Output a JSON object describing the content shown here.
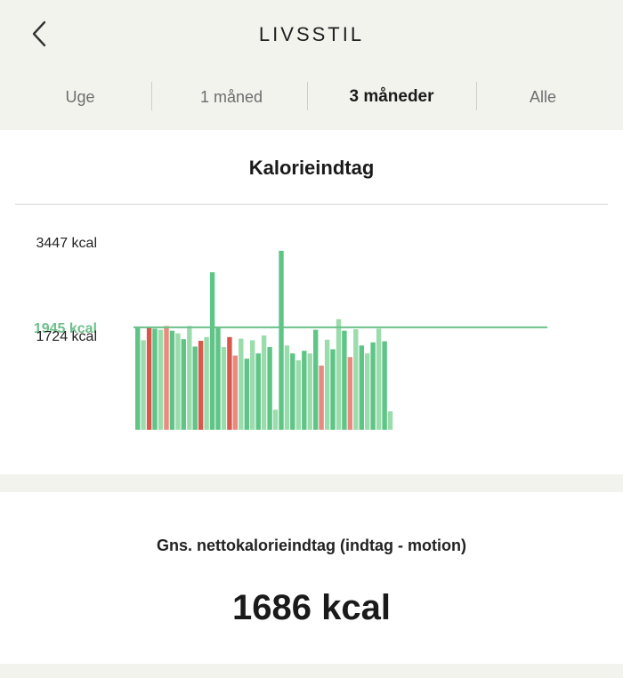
{
  "header": {
    "title": "LIVSSTIL",
    "back_icon": "chevron-left-icon"
  },
  "tabs": [
    {
      "label": "Uge",
      "active": false
    },
    {
      "label": "1 måned",
      "active": false
    },
    {
      "label": "3 måneder",
      "active": true
    },
    {
      "label": "Alle",
      "active": false
    }
  ],
  "chart": {
    "title": "Kalorieindtag"
  },
  "chart_data": {
    "type": "bar",
    "unit": "kcal",
    "y_labels": [
      "3447 kcal",
      "1945 kcal",
      "1724 kcal"
    ],
    "max_value": 3447,
    "goal_value": 1945,
    "average_value": 1724,
    "ylim": [
      0,
      3447
    ],
    "colors": {
      "goal_line": "#6cc08a",
      "under_goal_dark": "#5fc587",
      "under_goal_light": "#9bdcad",
      "over_goal_dark": "#d9584d",
      "over_goal_light": "#e88a7f"
    },
    "values": [
      1960,
      1700,
      1960,
      1920,
      1900,
      1970,
      1880,
      1830,
      1720,
      1970,
      1580,
      1690,
      1760,
      2990,
      1940,
      1570,
      1760,
      1410,
      1730,
      1350,
      1700,
      1450,
      1790,
      1570,
      380,
      3400,
      1600,
      1450,
      1320,
      1500,
      1450,
      1900,
      1220,
      1710,
      1530,
      2100,
      1880,
      1380,
      1910,
      1600,
      1450,
      1660,
      1920,
      1680,
      350
    ],
    "tones": [
      "d",
      "l",
      "r",
      "d",
      "l",
      "p",
      "d",
      "l",
      "d",
      "l",
      "d",
      "r",
      "l",
      "d",
      "d",
      "l",
      "r",
      "p",
      "l",
      "d",
      "l",
      "d",
      "l",
      "d",
      "l",
      "d",
      "l",
      "d",
      "l",
      "d",
      "l",
      "d",
      "p",
      "l",
      "d",
      "l",
      "d",
      "p",
      "l",
      "d",
      "l",
      "d",
      "l",
      "d",
      "l"
    ]
  },
  "average": {
    "label": "Gns. nettokalorieindtag (indtag - motion)",
    "value": "1686 kcal"
  }
}
